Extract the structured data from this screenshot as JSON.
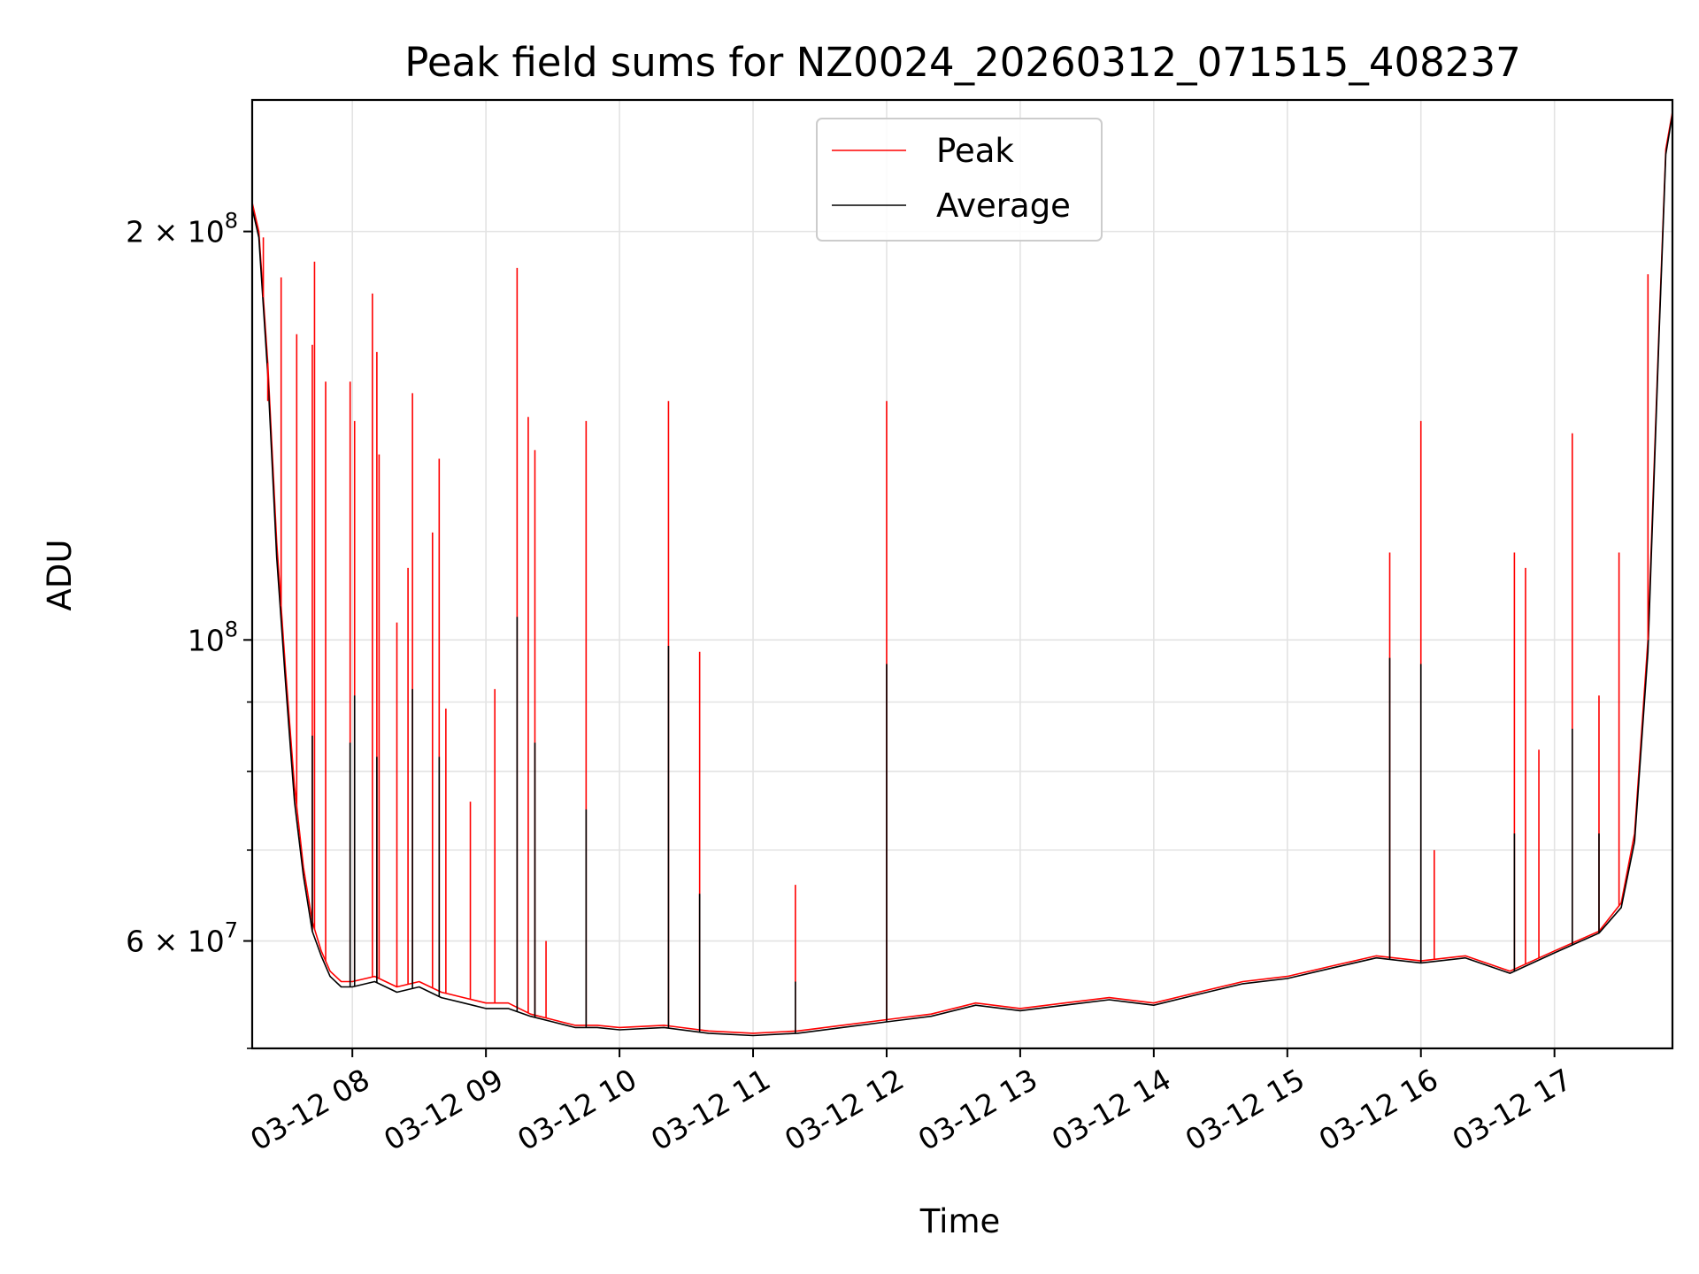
{
  "chart_data": {
    "type": "line",
    "title": "Peak field sums for NZ0024_20260312_071515_408237",
    "xlabel": "Time",
    "ylabel": "ADU",
    "y_scale": "log",
    "ylim": [
      50000000,
      250000000
    ],
    "xlim": [
      "2026-03-12 07:15",
      "2026-03-12 17:53"
    ],
    "grid": true,
    "legend_position": "top-center",
    "x_ticks": [
      "03-12 08",
      "03-12 09",
      "03-12 10",
      "03-12 11",
      "03-12 12",
      "03-12 13",
      "03-12 14",
      "03-12 15",
      "03-12 16",
      "03-12 17"
    ],
    "y_ticks": [
      "2 × 10^8",
      "10^8",
      "6 × 10^7"
    ],
    "series": [
      {
        "name": "Peak",
        "color": "#ff0000",
        "x": [
          "07:15",
          "07:18",
          "07:22",
          "07:26",
          "07:30",
          "07:34",
          "07:38",
          "07:42",
          "07:46",
          "07:50",
          "07:55",
          "08:00",
          "08:10",
          "08:20",
          "08:30",
          "08:40",
          "08:50",
          "09:00",
          "09:10",
          "09:20",
          "09:30",
          "09:40",
          "09:50",
          "10:00",
          "10:20",
          "10:40",
          "11:00",
          "11:20",
          "11:40",
          "12:00",
          "12:20",
          "12:40",
          "13:00",
          "13:20",
          "13:40",
          "14:00",
          "14:20",
          "14:40",
          "15:00",
          "15:20",
          "15:40",
          "16:00",
          "16:20",
          "16:40",
          "17:00",
          "17:20",
          "17:30",
          "17:36",
          "17:42",
          "17:47",
          "17:50",
          "17:53"
        ],
        "y": [
          210000000,
          200000000,
          160000000,
          118000000,
          95000000,
          78000000,
          68000000,
          62000000,
          59000000,
          57000000,
          56000000,
          56000000,
          56500000,
          55500000,
          56000000,
          55000000,
          54500000,
          54000000,
          54000000,
          53000000,
          52500000,
          52000000,
          52000000,
          51800000,
          52000000,
          51500000,
          51300000,
          51500000,
          52000000,
          52500000,
          53000000,
          54000000,
          53500000,
          54000000,
          54500000,
          54000000,
          55000000,
          56000000,
          56500000,
          57500000,
          58500000,
          58000000,
          58500000,
          57000000,
          59000000,
          61000000,
          64000000,
          72000000,
          100000000,
          170000000,
          230000000,
          245000000
        ]
      },
      {
        "name": "Average",
        "color": "#000000",
        "x": [
          "07:15",
          "07:18",
          "07:22",
          "07:26",
          "07:30",
          "07:34",
          "07:38",
          "07:42",
          "07:46",
          "07:50",
          "07:55",
          "08:00",
          "08:10",
          "08:20",
          "08:30",
          "08:40",
          "08:50",
          "09:00",
          "09:10",
          "09:20",
          "09:30",
          "09:40",
          "09:50",
          "10:00",
          "10:20",
          "10:40",
          "11:00",
          "11:20",
          "11:40",
          "12:00",
          "12:20",
          "12:40",
          "13:00",
          "13:20",
          "13:40",
          "14:00",
          "14:20",
          "14:40",
          "15:00",
          "15:20",
          "15:40",
          "16:00",
          "16:20",
          "16:40",
          "17:00",
          "17:20",
          "17:30",
          "17:36",
          "17:42",
          "17:47",
          "17:50",
          "17:53"
        ],
        "y": [
          208000000,
          198000000,
          157000000,
          115000000,
          93000000,
          76000000,
          67000000,
          61000000,
          58500000,
          56500000,
          55500000,
          55500000,
          56000000,
          55000000,
          55500000,
          54500000,
          54000000,
          53500000,
          53500000,
          52800000,
          52300000,
          51800000,
          51800000,
          51600000,
          51800000,
          51300000,
          51100000,
          51300000,
          51800000,
          52300000,
          52800000,
          53800000,
          53300000,
          53800000,
          54300000,
          53800000,
          54800000,
          55800000,
          56300000,
          57300000,
          58300000,
          57800000,
          58300000,
          56800000,
          58800000,
          60800000,
          63500000,
          71000000,
          98000000,
          168000000,
          228000000,
          244000000
        ]
      }
    ],
    "spikes": {
      "peak": [
        {
          "x": "07:20",
          "y": 198000000
        },
        {
          "x": "07:22",
          "y": 150000000
        },
        {
          "x": "07:28",
          "y": 185000000
        },
        {
          "x": "07:35",
          "y": 168000000
        },
        {
          "x": "07:42",
          "y": 165000000
        },
        {
          "x": "07:43",
          "y": 190000000
        },
        {
          "x": "07:48",
          "y": 155000000
        },
        {
          "x": "07:59",
          "y": 155000000
        },
        {
          "x": "08:01",
          "y": 145000000
        },
        {
          "x": "08:09",
          "y": 180000000
        },
        {
          "x": "08:11",
          "y": 163000000
        },
        {
          "x": "08:12",
          "y": 137000000
        },
        {
          "x": "08:20",
          "y": 103000000
        },
        {
          "x": "08:25",
          "y": 113000000
        },
        {
          "x": "08:27",
          "y": 152000000
        },
        {
          "x": "08:36",
          "y": 120000000
        },
        {
          "x": "08:39",
          "y": 136000000
        },
        {
          "x": "08:42",
          "y": 89000000
        },
        {
          "x": "08:53",
          "y": 76000000
        },
        {
          "x": "09:04",
          "y": 92000000
        },
        {
          "x": "09:14",
          "y": 188000000
        },
        {
          "x": "09:19",
          "y": 146000000
        },
        {
          "x": "09:22",
          "y": 138000000
        },
        {
          "x": "09:27",
          "y": 60000000
        },
        {
          "x": "09:45",
          "y": 145000000
        },
        {
          "x": "10:22",
          "y": 150000000
        },
        {
          "x": "10:36",
          "y": 98000000
        },
        {
          "x": "11:19",
          "y": 66000000
        },
        {
          "x": "12:00",
          "y": 150000000
        },
        {
          "x": "15:46",
          "y": 116000000
        },
        {
          "x": "16:00",
          "y": 145000000
        },
        {
          "x": "16:06",
          "y": 70000000
        },
        {
          "x": "16:42",
          "y": 116000000
        },
        {
          "x": "16:47",
          "y": 113000000
        },
        {
          "x": "16:53",
          "y": 83000000
        },
        {
          "x": "17:08",
          "y": 142000000
        },
        {
          "x": "17:20",
          "y": 91000000
        },
        {
          "x": "17:29",
          "y": 116000000
        },
        {
          "x": "17:42",
          "y": 186000000
        }
      ],
      "average": [
        {
          "x": "07:42",
          "y": 85000000
        },
        {
          "x": "07:59",
          "y": 84000000
        },
        {
          "x": "08:01",
          "y": 91000000
        },
        {
          "x": "08:11",
          "y": 82000000
        },
        {
          "x": "08:27",
          "y": 92000000
        },
        {
          "x": "08:39",
          "y": 82000000
        },
        {
          "x": "09:14",
          "y": 104000000
        },
        {
          "x": "09:22",
          "y": 84000000
        },
        {
          "x": "09:45",
          "y": 75000000
        },
        {
          "x": "10:22",
          "y": 99000000
        },
        {
          "x": "10:36",
          "y": 65000000
        },
        {
          "x": "11:19",
          "y": 56000000
        },
        {
          "x": "12:00",
          "y": 96000000
        },
        {
          "x": "15:46",
          "y": 97000000
        },
        {
          "x": "16:00",
          "y": 96000000
        },
        {
          "x": "16:42",
          "y": 72000000
        },
        {
          "x": "17:08",
          "y": 86000000
        },
        {
          "x": "17:20",
          "y": 72000000
        }
      ]
    }
  }
}
